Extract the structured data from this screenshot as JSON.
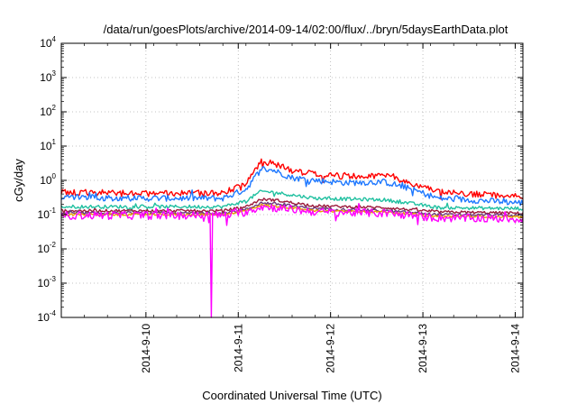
{
  "chart_data": {
    "type": "line",
    "title": "/data/run/goesPlots/archive/2014-09-14/02:00/flux/../bryn/5daysEarthData.plot",
    "xlabel": "Coordinated Universal Time (UTC)",
    "ylabel": "cGy/day",
    "yscale": "log",
    "ylim": [
      0.0001,
      10000
    ],
    "xlim": [
      "2014-09-09 02:00",
      "2014-09-14 02:00"
    ],
    "grid": true,
    "y_ticks": [
      {
        "base": "10",
        "exp": "-4",
        "value": 0.0001
      },
      {
        "base": "10",
        "exp": "-3",
        "value": 0.001
      },
      {
        "base": "10",
        "exp": "-2",
        "value": 0.01
      },
      {
        "base": "10",
        "exp": "-1",
        "value": 0.1
      },
      {
        "base": "10",
        "exp": "0",
        "value": 1
      },
      {
        "base": "10",
        "exp": "1",
        "value": 10
      },
      {
        "base": "10",
        "exp": "2",
        "value": 100
      },
      {
        "base": "10",
        "exp": "3",
        "value": 1000
      },
      {
        "base": "10",
        "exp": "4",
        "value": 10000
      }
    ],
    "x_ticks": [
      {
        "label": "2014-9-10",
        "value": "2014-09-10"
      },
      {
        "label": "2014-9-11",
        "value": "2014-09-11"
      },
      {
        "label": "2014-9-12",
        "value": "2014-09-12"
      },
      {
        "label": "2014-9-13",
        "value": "2014-09-13"
      },
      {
        "label": "2014-9-14",
        "value": "2014-09-14"
      }
    ],
    "series": [
      {
        "color": "#ff0000",
        "noise": 0.09,
        "points": [
          [
            "2014-09-09 02:00",
            0.45
          ],
          [
            "2014-09-10 00:00",
            0.42
          ],
          [
            "2014-09-10 20:00",
            0.42
          ],
          [
            "2014-09-11 02:00",
            0.8
          ],
          [
            "2014-09-11 06:00",
            3.5
          ],
          [
            "2014-09-11 09:00",
            3.2
          ],
          [
            "2014-09-11 14:00",
            1.9
          ],
          [
            "2014-09-11 20:00",
            1.5
          ],
          [
            "2014-09-12 04:00",
            1.3
          ],
          [
            "2014-09-12 14:00",
            1.4
          ],
          [
            "2014-09-12 20:00",
            0.9
          ],
          [
            "2014-09-13 04:00",
            0.45
          ],
          [
            "2014-09-14 02:00",
            0.33
          ]
        ]
      },
      {
        "color": "#1e78ff",
        "noise": 0.09,
        "points": [
          [
            "2014-09-09 02:00",
            0.32
          ],
          [
            "2014-09-10 00:00",
            0.3
          ],
          [
            "2014-09-10 20:00",
            0.3
          ],
          [
            "2014-09-11 02:00",
            0.55
          ],
          [
            "2014-09-11 06:00",
            2.2
          ],
          [
            "2014-09-11 09:00",
            2.0
          ],
          [
            "2014-09-11 14:00",
            1.2
          ],
          [
            "2014-09-11 20:00",
            1.0
          ],
          [
            "2014-09-12 04:00",
            0.85
          ],
          [
            "2014-09-12 14:00",
            0.9
          ],
          [
            "2014-09-12 20:00",
            0.6
          ],
          [
            "2014-09-13 04:00",
            0.3
          ],
          [
            "2014-09-14 02:00",
            0.22
          ]
        ]
      },
      {
        "color": "#20c0a0",
        "noise": 0.05,
        "points": [
          [
            "2014-09-09 02:00",
            0.17
          ],
          [
            "2014-09-10 20:00",
            0.17
          ],
          [
            "2014-09-11 02:00",
            0.25
          ],
          [
            "2014-09-11 06:00",
            0.48
          ],
          [
            "2014-09-11 09:00",
            0.45
          ],
          [
            "2014-09-11 20:00",
            0.3
          ],
          [
            "2014-09-12 14:00",
            0.27
          ],
          [
            "2014-09-12 20:00",
            0.22
          ],
          [
            "2014-09-13 04:00",
            0.16
          ],
          [
            "2014-09-14 02:00",
            0.15
          ]
        ]
      },
      {
        "color": "#9b1a3a",
        "noise": 0.04,
        "points": [
          [
            "2014-09-09 02:00",
            0.13
          ],
          [
            "2014-09-10 20:00",
            0.13
          ],
          [
            "2014-09-11 02:00",
            0.17
          ],
          [
            "2014-09-11 06:00",
            0.28
          ],
          [
            "2014-09-11 09:00",
            0.27
          ],
          [
            "2014-09-11 20:00",
            0.18
          ],
          [
            "2014-09-12 14:00",
            0.16
          ],
          [
            "2014-09-13 04:00",
            0.12
          ],
          [
            "2014-09-14 02:00",
            0.11
          ]
        ]
      },
      {
        "color": "#6a3a7a",
        "noise": 0.04,
        "points": [
          [
            "2014-09-09 02:00",
            0.11
          ],
          [
            "2014-09-10 20:00",
            0.11
          ],
          [
            "2014-09-11 02:00",
            0.14
          ],
          [
            "2014-09-11 06:00",
            0.22
          ],
          [
            "2014-09-11 09:00",
            0.21
          ],
          [
            "2014-09-11 20:00",
            0.15
          ],
          [
            "2014-09-12 14:00",
            0.13
          ],
          [
            "2014-09-13 04:00",
            0.1
          ],
          [
            "2014-09-14 02:00",
            0.095
          ]
        ]
      },
      {
        "color": "#e6a000",
        "noise": 0.03,
        "points": [
          [
            "2014-09-09 02:00",
            0.1
          ],
          [
            "2014-09-10 20:00",
            0.1
          ],
          [
            "2014-09-11 02:00",
            0.13
          ],
          [
            "2014-09-11 06:00",
            0.19
          ],
          [
            "2014-09-11 09:00",
            0.18
          ],
          [
            "2014-09-11 20:00",
            0.13
          ],
          [
            "2014-09-12 14:00",
            0.12
          ],
          [
            "2014-09-13 04:00",
            0.09
          ],
          [
            "2014-09-14 02:00",
            0.085
          ]
        ]
      },
      {
        "color": "#ff00ff",
        "noise": 0.12,
        "dropouts": [
          {
            "time": "2014-09-10 17:00",
            "value": 0.0001
          }
        ],
        "points": [
          [
            "2014-09-09 02:00",
            0.095
          ],
          [
            "2014-09-10 20:00",
            0.095
          ],
          [
            "2014-09-11 02:00",
            0.12
          ],
          [
            "2014-09-11 06:00",
            0.17
          ],
          [
            "2014-09-11 09:00",
            0.16
          ],
          [
            "2014-09-11 20:00",
            0.12
          ],
          [
            "2014-09-12 14:00",
            0.11
          ],
          [
            "2014-09-13 04:00",
            0.08
          ],
          [
            "2014-09-14 02:00",
            0.075
          ]
        ]
      }
    ]
  }
}
